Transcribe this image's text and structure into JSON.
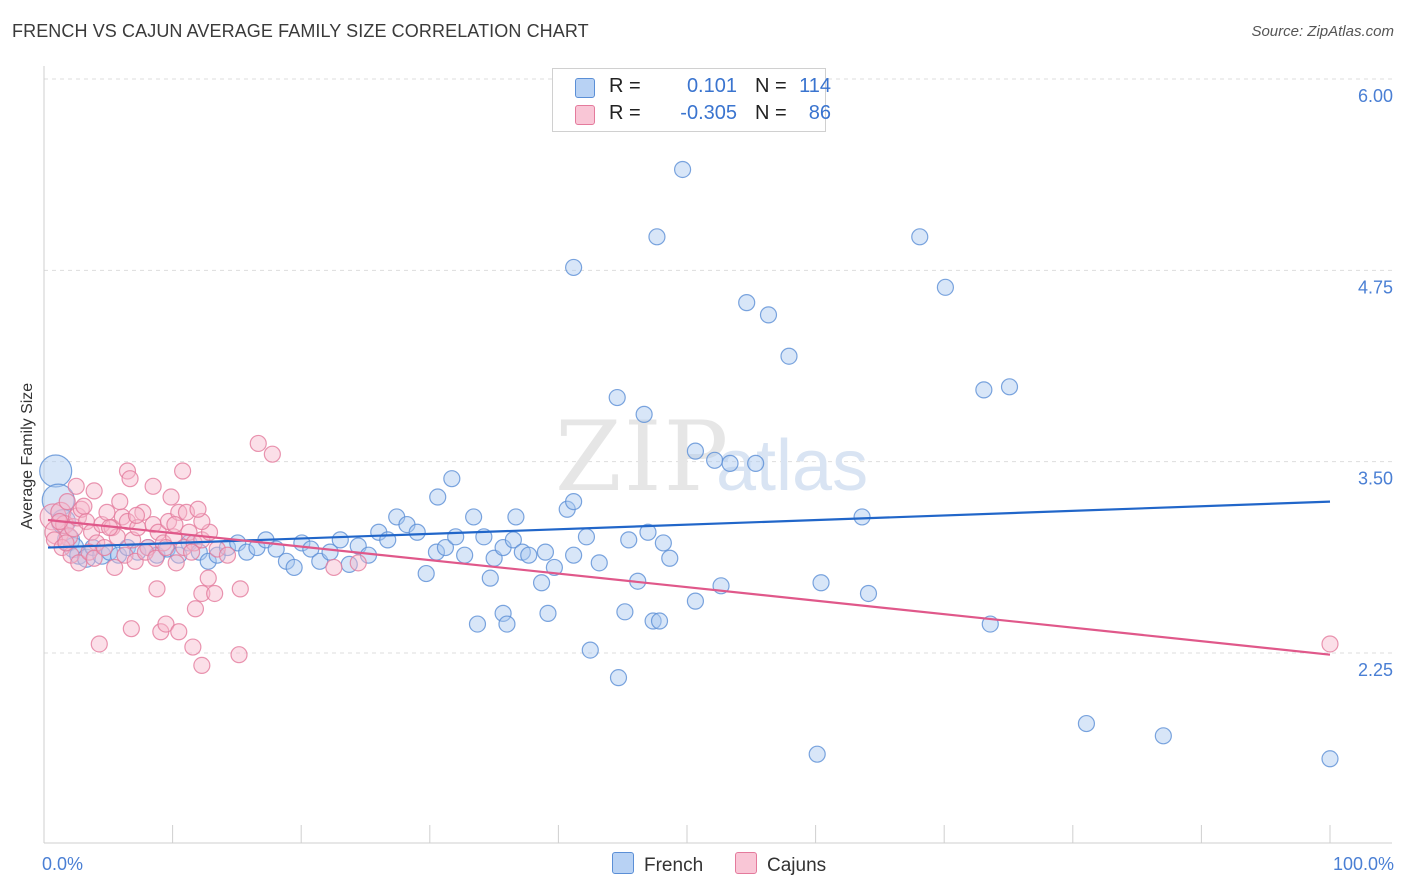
{
  "title": "FRENCH VS CAJUN AVERAGE FAMILY SIZE CORRELATION CHART",
  "source": "Source: ZipAtlas.com",
  "watermark": {
    "zip": "ZIP",
    "atlas": "atlas"
  },
  "colors": {
    "french_fill": "#a9c8f0",
    "french_stroke": "#5b8fd6",
    "french_line": "#2166c9",
    "cajuns_fill": "#f7b8cc",
    "cajuns_stroke": "#e47a9c",
    "cajuns_line": "#e0588a",
    "tick": "#4a7fd4",
    "grid": "#dddddd"
  },
  "legend": {
    "french": {
      "r_label": "R =",
      "r_value": "0.101",
      "n_label": "N =",
      "n_value": "114"
    },
    "cajuns": {
      "r_label": "R =",
      "r_value": "-0.305",
      "n_label": "N =",
      "n_value": "86"
    }
  },
  "chart_data": {
    "type": "scatter",
    "title": "FRENCH VS CAJUN AVERAGE FAMILY SIZE CORRELATION CHART",
    "xlabel": "",
    "ylabel": "Average Family Size",
    "xlim": [
      0,
      100
    ],
    "ylim": [
      1.25,
      6.1
    ],
    "x_tick_labels": [
      "0.0%",
      "100.0%"
    ],
    "y_ticks": [
      2.25,
      3.5,
      4.75,
      6.0
    ],
    "y_tick_labels": [
      "2.25",
      "3.50",
      "4.75",
      "6.00"
    ],
    "series": [
      {
        "name": "French",
        "trend": {
          "x": [
            0,
            100
          ],
          "y": [
            3.05,
            3.35
          ]
        },
        "points": [
          [
            0.6,
            3.55,
            16
          ],
          [
            0.8,
            3.36,
            16
          ],
          [
            1.2,
            3.22,
            12
          ],
          [
            1.6,
            3.1,
            11
          ],
          [
            2.0,
            3.05,
            10
          ],
          [
            2.4,
            3.0,
            9
          ],
          [
            3.0,
            2.98,
            9
          ],
          [
            3.5,
            3.05,
            8
          ],
          [
            4.2,
            3.0,
            9
          ],
          [
            4.8,
            3.02,
            8
          ],
          [
            5.5,
            3.0,
            8
          ],
          [
            6.2,
            3.05,
            8
          ],
          [
            7.0,
            3.02,
            8
          ],
          [
            7.8,
            3.05,
            8
          ],
          [
            8.5,
            3.0,
            8
          ],
          [
            9.3,
            3.04,
            8
          ],
          [
            10.2,
            3.0,
            8
          ],
          [
            11.0,
            3.08,
            8
          ],
          [
            11.8,
            3.02,
            8
          ],
          [
            12.5,
            2.96,
            8
          ],
          [
            13.2,
            3.0,
            8
          ],
          [
            14.0,
            3.05,
            8
          ],
          [
            14.8,
            3.08,
            8
          ],
          [
            15.5,
            3.02,
            8
          ],
          [
            16.3,
            3.05,
            8
          ],
          [
            17.0,
            3.1,
            8
          ],
          [
            17.8,
            3.04,
            8
          ],
          [
            18.6,
            2.96,
            8
          ],
          [
            19.2,
            2.92,
            8
          ],
          [
            19.8,
            3.08,
            8
          ],
          [
            20.5,
            3.04,
            8
          ],
          [
            21.2,
            2.96,
            8
          ],
          [
            22.0,
            3.02,
            8
          ],
          [
            22.8,
            3.1,
            8
          ],
          [
            23.5,
            2.94,
            8
          ],
          [
            24.2,
            3.06,
            8
          ],
          [
            25.0,
            3.0,
            8
          ],
          [
            25.8,
            3.15,
            8
          ],
          [
            26.5,
            3.1,
            8
          ],
          [
            27.2,
            3.25,
            8
          ],
          [
            28.0,
            3.2,
            8
          ],
          [
            28.8,
            3.15,
            8
          ],
          [
            29.5,
            2.88,
            8
          ],
          [
            30.3,
            3.02,
            8
          ],
          [
            31.0,
            3.05,
            8
          ],
          [
            31.8,
            3.12,
            8
          ],
          [
            32.5,
            3.0,
            8
          ],
          [
            33.2,
            3.25,
            8
          ],
          [
            34.0,
            3.12,
            8
          ],
          [
            34.8,
            2.98,
            8
          ],
          [
            35.5,
            3.05,
            8
          ],
          [
            36.3,
            3.1,
            8
          ],
          [
            37.0,
            3.02,
            8
          ],
          [
            30.4,
            3.38,
            8
          ],
          [
            31.5,
            3.5,
            8
          ],
          [
            33.5,
            2.55,
            8
          ],
          [
            34.5,
            2.85,
            8
          ],
          [
            35.5,
            2.62,
            8
          ],
          [
            35.8,
            2.55,
            8
          ],
          [
            36.5,
            3.25,
            8
          ],
          [
            37.5,
            3.0,
            8
          ],
          [
            38.5,
            2.82,
            8
          ],
          [
            39.0,
            2.62,
            8
          ],
          [
            40.5,
            3.3,
            8
          ],
          [
            41.0,
            3.35,
            8
          ],
          [
            42.0,
            3.12,
            8
          ],
          [
            43.0,
            2.95,
            8
          ],
          [
            39.5,
            2.92,
            8
          ],
          [
            41.0,
            3.0,
            8
          ],
          [
            38.8,
            3.02,
            8
          ],
          [
            42.3,
            2.38,
            8
          ],
          [
            44.5,
            2.2,
            8
          ],
          [
            45.0,
            2.63,
            8
          ],
          [
            46.0,
            2.83,
            8
          ],
          [
            47.2,
            2.57,
            8
          ],
          [
            47.7,
            2.57,
            8
          ],
          [
            45.3,
            3.1,
            8
          ],
          [
            46.8,
            3.15,
            8
          ],
          [
            48.0,
            3.08,
            8
          ],
          [
            48.5,
            2.98,
            8
          ],
          [
            50.5,
            2.7,
            8
          ],
          [
            52.5,
            2.8,
            8
          ],
          [
            44.4,
            4.03,
            8
          ],
          [
            46.5,
            3.92,
            8
          ],
          [
            50.5,
            3.68,
            8
          ],
          [
            52.0,
            3.62,
            8
          ],
          [
            53.2,
            3.6,
            8
          ],
          [
            55.2,
            3.6,
            8
          ],
          [
            49.5,
            5.52,
            8
          ],
          [
            47.5,
            5.08,
            8
          ],
          [
            41.0,
            4.88,
            8
          ],
          [
            54.5,
            4.65,
            8
          ],
          [
            56.2,
            4.57,
            8
          ],
          [
            57.8,
            4.3,
            8
          ],
          [
            60.3,
            2.82,
            8
          ],
          [
            63.5,
            3.25,
            8
          ],
          [
            64.0,
            2.75,
            8
          ],
          [
            68.0,
            5.08,
            8
          ],
          [
            70.0,
            4.75,
            8
          ],
          [
            73.0,
            4.08,
            8
          ],
          [
            75.0,
            4.1,
            8
          ],
          [
            73.5,
            2.55,
            8
          ],
          [
            60.0,
            1.7,
            8
          ],
          [
            81.0,
            1.9,
            8
          ],
          [
            87.0,
            1.82,
            8
          ],
          [
            100.0,
            1.67,
            8
          ]
        ]
      },
      {
        "name": "Cajuns",
        "trend": {
          "x": [
            0,
            100
          ],
          "y": [
            3.23,
            2.35
          ]
        },
        "points": [
          [
            0.4,
            3.25,
            13
          ],
          [
            0.7,
            3.15,
            12
          ],
          [
            1.0,
            3.28,
            10
          ],
          [
            1.3,
            3.2,
            9
          ],
          [
            1.6,
            3.12,
            9
          ],
          [
            2.0,
            3.18,
            9
          ],
          [
            2.3,
            3.25,
            9
          ],
          [
            2.6,
            3.3,
            8
          ],
          [
            3.0,
            3.22,
            8
          ],
          [
            3.4,
            3.15,
            8
          ],
          [
            3.8,
            3.08,
            8
          ],
          [
            4.2,
            3.2,
            8
          ],
          [
            4.6,
            3.28,
            8
          ],
          [
            5.0,
            3.18,
            8
          ],
          [
            5.4,
            3.12,
            8
          ],
          [
            5.8,
            3.25,
            8
          ],
          [
            6.2,
            3.22,
            8
          ],
          [
            6.6,
            3.1,
            8
          ],
          [
            7.0,
            3.18,
            8
          ],
          [
            7.4,
            3.28,
            8
          ],
          [
            7.8,
            3.05,
            8
          ],
          [
            8.2,
            3.2,
            8
          ],
          [
            8.6,
            3.15,
            8
          ],
          [
            9.0,
            3.08,
            8
          ],
          [
            9.4,
            3.22,
            8
          ],
          [
            9.8,
            3.12,
            8
          ],
          [
            10.2,
            3.28,
            8
          ],
          [
            10.6,
            3.05,
            8
          ],
          [
            11.0,
            3.15,
            8
          ],
          [
            11.4,
            3.08,
            8
          ],
          [
            0.5,
            3.1,
            8
          ],
          [
            1.1,
            3.05,
            8
          ],
          [
            1.8,
            3.0,
            8
          ],
          [
            2.4,
            2.95,
            8
          ],
          [
            3.2,
            3.02,
            8
          ],
          [
            3.6,
            2.98,
            8
          ],
          [
            4.4,
            3.05,
            8
          ],
          [
            5.2,
            2.92,
            8
          ],
          [
            6.0,
            3.0,
            8
          ],
          [
            6.8,
            2.96,
            8
          ],
          [
            7.6,
            3.02,
            8
          ],
          [
            8.4,
            2.98,
            8
          ],
          [
            9.2,
            3.05,
            8
          ],
          [
            10.0,
            2.95,
            8
          ],
          [
            11.2,
            3.02,
            8
          ],
          [
            12.0,
            3.1,
            8
          ],
          [
            12.6,
            3.15,
            8
          ],
          [
            13.2,
            3.04,
            8
          ],
          [
            2.2,
            3.45,
            8
          ],
          [
            3.6,
            3.42,
            8
          ],
          [
            5.6,
            3.35,
            8
          ],
          [
            6.2,
            3.55,
            8
          ],
          [
            6.4,
            3.5,
            8
          ],
          [
            8.2,
            3.45,
            8
          ],
          [
            9.6,
            3.38,
            8
          ],
          [
            10.5,
            3.55,
            8
          ],
          [
            10.8,
            3.28,
            8
          ],
          [
            12.0,
            3.22,
            8
          ],
          [
            14.0,
            3.0,
            8
          ],
          [
            16.4,
            3.73,
            8
          ],
          [
            17.5,
            3.66,
            8
          ],
          [
            8.5,
            2.78,
            8
          ],
          [
            11.5,
            2.65,
            8
          ],
          [
            12.0,
            2.75,
            8
          ],
          [
            12.5,
            2.85,
            8
          ],
          [
            13.0,
            2.75,
            8
          ],
          [
            15.0,
            2.78,
            8
          ],
          [
            6.5,
            2.52,
            8
          ],
          [
            8.8,
            2.5,
            8
          ],
          [
            9.2,
            2.55,
            8
          ],
          [
            10.2,
            2.5,
            8
          ],
          [
            11.3,
            2.4,
            8
          ],
          [
            12.0,
            2.28,
            8
          ],
          [
            14.9,
            2.35,
            8
          ],
          [
            4.0,
            2.42,
            8
          ],
          [
            22.3,
            2.92,
            8
          ],
          [
            24.2,
            2.95,
            8
          ],
          [
            100.0,
            2.42,
            8
          ],
          [
            1.5,
            3.35,
            8
          ],
          [
            2.8,
            3.32,
            8
          ],
          [
            4.8,
            3.18,
            8
          ],
          [
            6.9,
            3.26,
            8
          ],
          [
            9.9,
            3.2,
            8
          ],
          [
            11.7,
            3.3,
            8
          ],
          [
            0.9,
            3.22,
            8
          ],
          [
            1.4,
            3.08,
            8
          ]
        ]
      }
    ],
    "legend_position": "top-center"
  }
}
